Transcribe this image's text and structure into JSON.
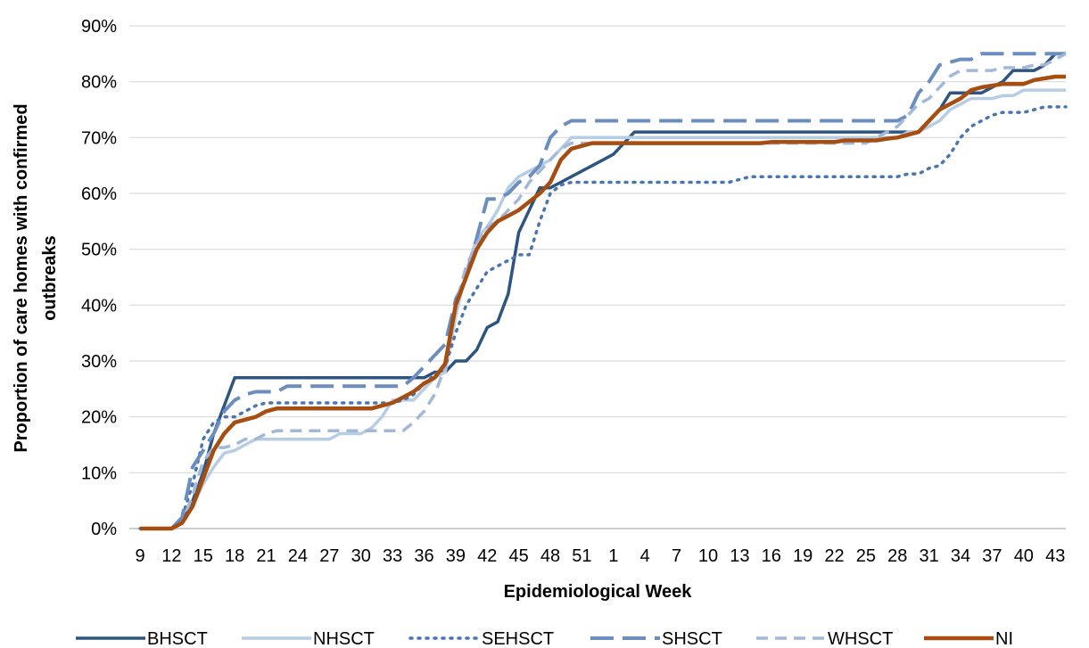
{
  "chart_data": {
    "type": "line",
    "title": "",
    "xlabel": "Epidemiological Week",
    "ylabel": "Proportion of care homes with confirmed outbreaks",
    "ylabel_lines": [
      "Proportion of care homes with confirmed",
      "outbreaks"
    ],
    "x_tick_labels": [
      "9",
      "12",
      "15",
      "18",
      "21",
      "24",
      "27",
      "30",
      "33",
      "36",
      "39",
      "42",
      "45",
      "48",
      "51",
      "1",
      "4",
      "7",
      "10",
      "13",
      "16",
      "19",
      "22",
      "25",
      "28",
      "31",
      "34",
      "37",
      "40",
      "43"
    ],
    "ylim": [
      0,
      90
    ],
    "y_ticks": [
      0,
      10,
      20,
      30,
      40,
      50,
      60,
      70,
      80,
      90
    ],
    "y_tick_suffix": "%",
    "grid": "horizontal",
    "legend_position": "bottom",
    "x": [
      1,
      2,
      3,
      4,
      5,
      6,
      7,
      8,
      9,
      10,
      11,
      12,
      13,
      14,
      15,
      16,
      17,
      18,
      19,
      20,
      21,
      22,
      23,
      24,
      25,
      26,
      27,
      28,
      29,
      30,
      31,
      32,
      33,
      34,
      35,
      36,
      37,
      38,
      39,
      40,
      41,
      42,
      43,
      44,
      45,
      46,
      47,
      48,
      49,
      50,
      51,
      52,
      53,
      54,
      55,
      56,
      57,
      58,
      59,
      60,
      61,
      62,
      63,
      64,
      65,
      66,
      67,
      68,
      69,
      70,
      71,
      72,
      73,
      74,
      75,
      76,
      77,
      78,
      79,
      80,
      81,
      82,
      83,
      84,
      85,
      86,
      87,
      88,
      89
    ],
    "series": [
      {
        "name": "BHSCT",
        "color": "#2E557F",
        "dash": "solid",
        "width": 3.5,
        "values": [
          0,
          0,
          0,
          0,
          1,
          5,
          10,
          17,
          22,
          27,
          27,
          27,
          27,
          27,
          27,
          27,
          27,
          27,
          27,
          27,
          27,
          27,
          27,
          27,
          27,
          27,
          27,
          27,
          28,
          28,
          30,
          30,
          32,
          36,
          37,
          42,
          53,
          57,
          61,
          61,
          62,
          63,
          64,
          65,
          66,
          67,
          69,
          71,
          71,
          71,
          71,
          71,
          71,
          71,
          71,
          71,
          71,
          71,
          71,
          71,
          71,
          71,
          71,
          71,
          71,
          71,
          71,
          71,
          71,
          71,
          71,
          71,
          71,
          71,
          71,
          73,
          75,
          78,
          78,
          78,
          78,
          79,
          80,
          82,
          82,
          82,
          83,
          85,
          85
        ]
      },
      {
        "name": "NHSCT",
        "color": "#B6CDE4",
        "dash": "solid",
        "width": 3.5,
        "values": [
          0,
          0,
          0,
          0,
          1,
          4,
          8,
          11,
          13.5,
          14,
          15,
          16,
          16,
          16,
          16,
          16,
          16,
          16,
          16,
          17,
          17,
          17,
          18,
          20,
          23,
          23,
          23,
          25,
          27,
          28,
          38,
          46,
          52,
          54,
          57,
          61,
          63,
          64,
          65,
          66,
          68,
          70,
          70,
          70,
          70,
          70,
          70,
          70,
          70,
          70,
          70,
          70,
          70,
          70,
          70,
          70,
          70,
          70,
          70,
          70,
          70,
          70,
          70,
          70,
          70,
          70,
          70,
          70,
          70,
          70,
          70,
          70,
          70,
          71,
          71,
          72,
          73,
          75,
          76,
          77,
          77,
          77,
          77.5,
          77.5,
          78.5,
          78.5,
          78.5,
          78.5,
          78.5
        ]
      },
      {
        "name": "SEHSCT",
        "color": "#4A76AD",
        "dash": "dotted",
        "width": 3.5,
        "values": [
          0,
          0,
          0,
          0,
          2,
          8,
          16,
          19,
          20,
          20,
          21,
          22,
          22.5,
          22.5,
          22.5,
          22.5,
          22.5,
          22.5,
          22.5,
          22.5,
          22.5,
          22.5,
          22.5,
          22.5,
          22.5,
          23,
          24,
          26,
          27.5,
          29,
          35,
          40,
          43,
          46,
          47,
          48,
          49,
          49,
          55,
          60,
          61.5,
          62,
          62,
          62,
          62,
          62,
          62,
          62,
          62,
          62,
          62,
          62,
          62,
          62,
          62,
          62,
          62,
          62.5,
          63,
          63,
          63,
          63,
          63,
          63,
          63,
          63,
          63,
          63,
          63,
          63,
          63,
          63,
          63,
          63.5,
          63.5,
          64.5,
          65,
          67,
          70,
          72,
          73,
          74,
          74.5,
          74.5,
          74.5,
          75,
          75.5,
          75.5,
          75.5
        ]
      },
      {
        "name": "SHSCT",
        "color": "#6C8EBF",
        "dash": "longdash",
        "width": 4,
        "values": [
          0,
          0,
          0,
          0,
          2,
          11,
          14,
          17,
          21,
          23,
          24,
          24.5,
          24.5,
          24.5,
          25.5,
          25.5,
          25.5,
          25.5,
          25.5,
          25.5,
          25.5,
          25.5,
          25.5,
          25.5,
          25.5,
          25.5,
          27,
          29,
          31,
          33,
          41,
          45,
          52,
          59,
          59,
          60,
          62,
          63,
          65,
          70,
          72,
          73,
          73,
          73,
          73,
          73,
          73,
          73,
          73,
          73,
          73,
          73,
          73,
          73,
          73,
          73,
          73,
          73,
          73,
          73,
          73,
          73,
          73,
          73,
          73,
          73,
          73,
          73,
          73,
          73,
          73,
          73,
          73,
          74,
          78,
          80,
          83,
          83.5,
          84,
          84,
          85,
          85,
          85,
          85,
          85,
          85,
          85,
          85,
          85
        ]
      },
      {
        "name": "WHSCT",
        "color": "#A2B8D9",
        "dash": "dashed",
        "width": 3.5,
        "values": [
          0,
          0,
          0,
          0,
          1,
          6,
          12,
          14.5,
          14.5,
          15,
          16,
          16,
          17,
          17.5,
          17.5,
          17.5,
          17.5,
          17.5,
          17.5,
          17.5,
          17.5,
          17.5,
          17.5,
          17.5,
          17.5,
          17.5,
          19,
          21,
          24,
          29,
          40,
          47,
          51,
          54,
          55,
          57,
          59,
          62,
          64,
          66,
          68,
          69,
          69,
          69,
          69,
          69,
          69,
          69,
          69,
          69,
          69,
          69,
          69,
          69,
          69,
          69,
          69,
          69,
          69,
          69,
          69,
          69,
          69,
          69,
          69,
          69,
          69,
          69,
          69,
          69,
          70,
          71,
          72,
          74,
          76,
          77,
          79,
          81,
          82,
          82,
          82,
          82,
          82.5,
          82.5,
          82.5,
          83,
          83,
          84,
          85
        ]
      },
      {
        "name": "NI",
        "color": "#A64E12",
        "dash": "solid",
        "width": 4.5,
        "values": [
          0,
          0,
          0,
          0,
          1,
          4,
          9,
          14,
          17,
          19,
          19.5,
          20,
          21,
          21.5,
          21.5,
          21.5,
          21.5,
          21.5,
          21.5,
          21.5,
          21.5,
          21.5,
          21.5,
          22,
          22.5,
          23.5,
          24.5,
          26,
          27,
          29.5,
          40,
          45,
          50,
          53,
          55,
          56,
          57,
          58.5,
          60,
          62,
          66,
          68,
          68.5,
          69,
          69,
          69,
          69,
          69,
          69,
          69,
          69,
          69,
          69,
          69,
          69,
          69,
          69,
          69,
          69,
          69,
          69.2,
          69.2,
          69.2,
          69.2,
          69.2,
          69.2,
          69.2,
          69.5,
          69.5,
          69.5,
          69.5,
          69.8,
          70,
          70.5,
          71,
          73,
          75,
          76,
          77,
          78.5,
          79,
          79.3,
          79.6,
          79.6,
          79.6,
          80.3,
          80.6,
          80.9,
          80.9
        ]
      }
    ]
  }
}
